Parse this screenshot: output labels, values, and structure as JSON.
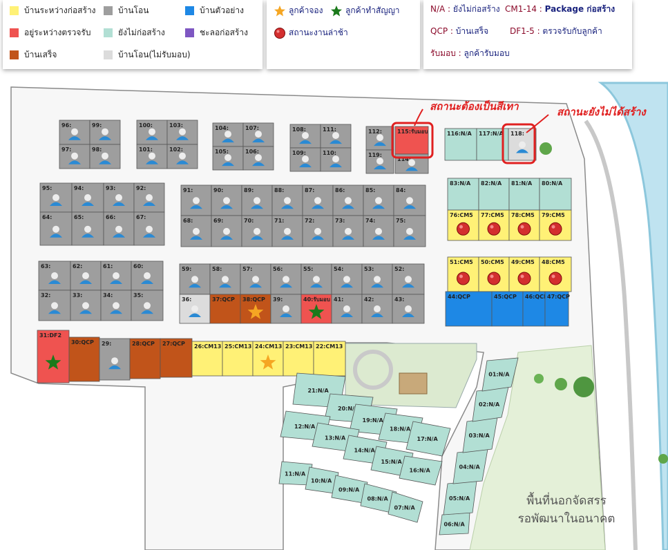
{
  "legend": {
    "status_items": [
      {
        "label": "บ้านระหว่างก่อสร้าง",
        "color": "#fff176"
      },
      {
        "label": "อยู่ระหว่างตรวจรับ",
        "color": "#ef5350"
      },
      {
        "label": "บ้านเสร็จ",
        "color": "#c1541a"
      },
      {
        "label": "บ้านโอน",
        "color": "#9e9e9e"
      },
      {
        "label": "ยังไม่ก่อสร้าง",
        "color": "#b2dfd4"
      },
      {
        "label": "บ้านโอน(ไม่รับมอบ)",
        "color": "#dcdcdc"
      },
      {
        "label": "บ้านตัวอย่าง",
        "color": "#1e88e5"
      },
      {
        "label": "ชะลอก่อสร้าง",
        "color": "#7e57c2"
      }
    ],
    "customer_items": [
      {
        "label": "ลูกค้าจอง",
        "icon": "orange-star-icon",
        "color": "#f5a623"
      },
      {
        "label": "ลูกค้าทำสัญญา",
        "icon": "green-star-icon",
        "color": "#1b7a1b"
      },
      {
        "label": "สถานะงานล่าช้า",
        "icon": "red-ball-icon",
        "color": "#d32f2f"
      }
    ],
    "notes": [
      {
        "key": "N/A",
        "value": "ยังไม่ก่อสร้าง"
      },
      {
        "key": "CM1-14",
        "value": "Package ก่อสร้าง"
      },
      {
        "key": "QCP",
        "value": "บ้านเสร็จ"
      },
      {
        "key": "DF1-5",
        "value": "ตรวจรับกับลูกค้า"
      },
      {
        "key": "รับมอบ",
        "value": "ลูกค้ารับมอบ"
      }
    ]
  },
  "annotations": {
    "grey_note": "สถานะต้องเป็นสีเทา",
    "not_built_note": "สถานะยังไม่ได้สร้าง"
  },
  "zone": {
    "line1": "พื้นที่นอกจัดสรร",
    "line2": "รอพัฒนาในอนาคต"
  },
  "colors": {
    "grey": "#9e9e9e",
    "lightgrey": "#dcdcdc",
    "yellow": "#fff176",
    "red": "#ef5350",
    "brown": "#c1541a",
    "teal": "#b2dfd4",
    "blue": "#1e88e5",
    "purple": "#7e57c2",
    "road": "#ffffff",
    "green_area": "#e4f0d8",
    "water": "#bfe3f0",
    "river_edge": "#8cc7dc"
  },
  "lots": [
    {
      "label": "96:",
      "status": "grey"
    },
    {
      "label": "99:",
      "status": "grey"
    },
    {
      "label": "97:",
      "status": "grey"
    },
    {
      "label": "98:",
      "status": "grey"
    },
    {
      "label": "100:",
      "status": "grey"
    },
    {
      "label": "103:",
      "status": "grey"
    },
    {
      "label": "101:",
      "status": "grey"
    },
    {
      "label": "102:",
      "status": "grey"
    },
    {
      "label": "104:",
      "status": "grey"
    },
    {
      "label": "107:",
      "status": "grey"
    },
    {
      "label": "105:",
      "status": "grey"
    },
    {
      "label": "106:",
      "status": "grey"
    },
    {
      "label": "108:",
      "status": "grey"
    },
    {
      "label": "111:",
      "status": "grey"
    },
    {
      "label": "109:",
      "status": "grey"
    },
    {
      "label": "110:",
      "status": "grey"
    },
    {
      "label": "112:",
      "status": "grey"
    },
    {
      "label": "119:",
      "status": "grey"
    },
    {
      "label": "115:รับมอบ",
      "status": "red"
    },
    {
      "label": "114:",
      "status": "grey"
    },
    {
      "label": "116:N/A",
      "status": "teal"
    },
    {
      "label": "117:N/A",
      "status": "teal"
    },
    {
      "label": "118:",
      "status": "lightgrey"
    },
    {
      "label": "95:",
      "status": "grey"
    },
    {
      "label": "94:",
      "status": "grey"
    },
    {
      "label": "93:",
      "status": "grey"
    },
    {
      "label": "92:",
      "status": "grey"
    },
    {
      "label": "64:",
      "status": "grey"
    },
    {
      "label": "65:",
      "status": "grey"
    },
    {
      "label": "66:",
      "status": "grey"
    },
    {
      "label": "67:",
      "status": "grey"
    },
    {
      "label": "91:",
      "status": "grey"
    },
    {
      "label": "90:",
      "status": "grey"
    },
    {
      "label": "89:",
      "status": "grey"
    },
    {
      "label": "88:",
      "status": "grey"
    },
    {
      "label": "87:",
      "status": "grey"
    },
    {
      "label": "86:",
      "status": "grey"
    },
    {
      "label": "85:",
      "status": "grey"
    },
    {
      "label": "84:",
      "status": "grey"
    },
    {
      "label": "68:",
      "status": "grey"
    },
    {
      "label": "69:",
      "status": "grey"
    },
    {
      "label": "70:",
      "status": "grey"
    },
    {
      "label": "71:",
      "status": "grey"
    },
    {
      "label": "72:",
      "status": "grey"
    },
    {
      "label": "73:",
      "status": "grey"
    },
    {
      "label": "74:",
      "status": "grey"
    },
    {
      "label": "75:",
      "status": "grey"
    },
    {
      "label": "83:N/A",
      "status": "teal"
    },
    {
      "label": "82:N/A",
      "status": "teal"
    },
    {
      "label": "81:N/A",
      "status": "teal"
    },
    {
      "label": "80:N/A",
      "status": "teal"
    },
    {
      "label": "76:CM5",
      "status": "yellow",
      "delayed": true
    },
    {
      "label": "77:CM5",
      "status": "yellow",
      "delayed": true
    },
    {
      "label": "78:CM5",
      "status": "yellow",
      "delayed": true
    },
    {
      "label": "79:CM5",
      "status": "yellow",
      "delayed": true
    },
    {
      "label": "51:CM5",
      "status": "yellow",
      "delayed": true
    },
    {
      "label": "50:CM5",
      "status": "yellow",
      "delayed": true
    },
    {
      "label": "49:CM5",
      "status": "yellow",
      "delayed": true
    },
    {
      "label": "48:CM5",
      "status": "yellow",
      "delayed": true
    },
    {
      "label": "44:QCP",
      "status": "blue"
    },
    {
      "label": "45:QCP",
      "status": "blue"
    },
    {
      "label": "46:QCP",
      "status": "blue"
    },
    {
      "label": "47:QCP",
      "status": "blue"
    },
    {
      "label": "63:",
      "status": "grey"
    },
    {
      "label": "62:",
      "status": "grey"
    },
    {
      "label": "61:",
      "status": "grey"
    },
    {
      "label": "60:",
      "status": "grey"
    },
    {
      "label": "32:",
      "status": "grey"
    },
    {
      "label": "33:",
      "status": "grey"
    },
    {
      "label": "34:",
      "status": "grey"
    },
    {
      "label": "35:",
      "status": "grey"
    },
    {
      "label": "59:",
      "status": "grey"
    },
    {
      "label": "58:",
      "status": "grey"
    },
    {
      "label": "57:",
      "status": "grey"
    },
    {
      "label": "56:",
      "status": "grey"
    },
    {
      "label": "55:",
      "status": "grey"
    },
    {
      "label": "54:",
      "status": "grey"
    },
    {
      "label": "53:",
      "status": "grey"
    },
    {
      "label": "52:",
      "status": "grey"
    },
    {
      "label": "36:",
      "status": "lightgrey"
    },
    {
      "label": "37:QCP",
      "status": "brown"
    },
    {
      "label": "38:QCP",
      "status": "brown",
      "star": "orange"
    },
    {
      "label": "39:",
      "status": "grey"
    },
    {
      "label": "40:รับมอบ",
      "status": "red",
      "star": "green"
    },
    {
      "label": "41:",
      "status": "grey"
    },
    {
      "label": "42:",
      "status": "grey"
    },
    {
      "label": "43:",
      "status": "grey"
    },
    {
      "label": "31:DF2",
      "status": "red",
      "star": "green"
    },
    {
      "label": "30:QCP",
      "status": "brown"
    },
    {
      "label": "29:",
      "status": "grey"
    },
    {
      "label": "28:QCP",
      "status": "brown"
    },
    {
      "label": "27:QCP",
      "status": "brown"
    },
    {
      "label": "26:CM13",
      "status": "yellow"
    },
    {
      "label": "25:CM13",
      "status": "yellow"
    },
    {
      "label": "24:CM13",
      "status": "yellow",
      "star": "orange"
    },
    {
      "label": "23:CM13",
      "status": "yellow"
    },
    {
      "label": "22:CM13",
      "status": "yellow"
    },
    {
      "label": "21:N/A",
      "status": "teal"
    },
    {
      "label": "20:N/A",
      "status": "teal"
    },
    {
      "label": "19:N/A",
      "status": "teal"
    },
    {
      "label": "18:N/A",
      "status": "teal"
    },
    {
      "label": "17:N/A",
      "status": "teal"
    },
    {
      "label": "12:N/A",
      "status": "teal"
    },
    {
      "label": "13:N/A",
      "status": "teal"
    },
    {
      "label": "14:N/A",
      "status": "teal"
    },
    {
      "label": "15:N/A",
      "status": "teal"
    },
    {
      "label": "16:N/A",
      "status": "teal"
    },
    {
      "label": "11:N/A",
      "status": "teal"
    },
    {
      "label": "10:N/A",
      "status": "teal"
    },
    {
      "label": "09:N/A",
      "status": "teal"
    },
    {
      "label": "08:N/A",
      "status": "teal"
    },
    {
      "label": "07:N/A",
      "status": "teal"
    },
    {
      "label": "06:N/A",
      "status": "teal"
    },
    {
      "label": "05:N/A",
      "status": "teal"
    },
    {
      "label": "04:N/A",
      "status": "teal"
    },
    {
      "label": "03:N/A",
      "status": "teal"
    },
    {
      "label": "02:N/A",
      "status": "teal"
    },
    {
      "label": "01:N/A",
      "status": "teal"
    }
  ]
}
